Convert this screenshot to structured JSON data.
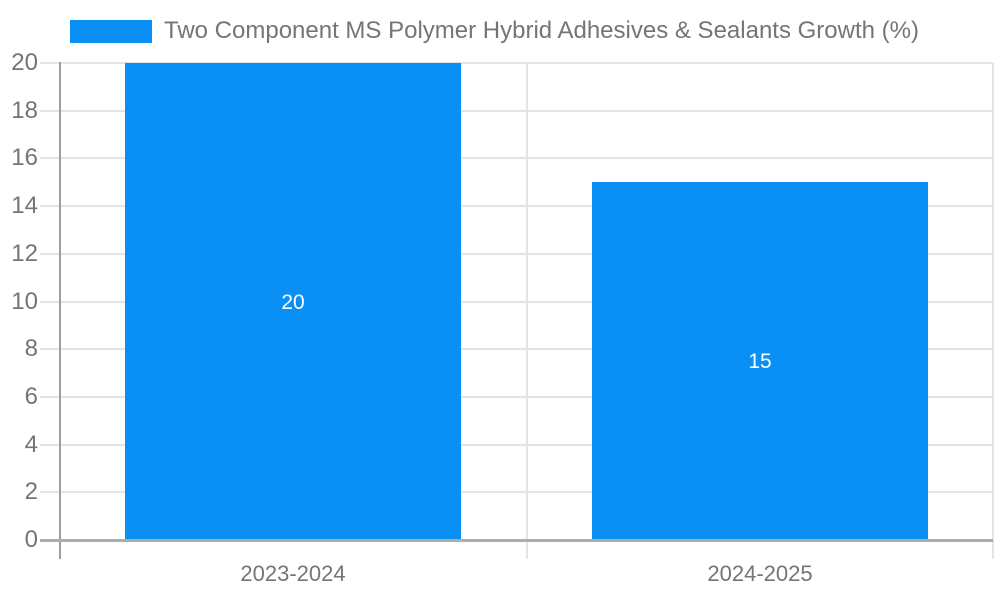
{
  "chart_data": {
    "type": "bar",
    "title": "Two Component MS Polymer Hybrid Adhesives & Sealants Growth (%)",
    "categories": [
      "2023-2024",
      "2024-2025"
    ],
    "values": [
      20,
      15
    ],
    "value_labels": [
      "20",
      "15"
    ],
    "xlabel": "",
    "ylabel": "",
    "ylim": [
      0,
      20
    ],
    "ytick_step": 2,
    "grid": true,
    "legend_position": "top-left",
    "legend_entries": [
      "Two Component MS Polymer Hybrid Adhesives & Sealants Growth (%)"
    ]
  },
  "colors": {
    "bar": "#0a8ff5",
    "axis_text": "#757575",
    "gridline": "#e4e4e4",
    "axis_line": "#9e9e9e",
    "baseline": "#adadad",
    "value_label": "#ffffff",
    "background": "#ffffff"
  }
}
